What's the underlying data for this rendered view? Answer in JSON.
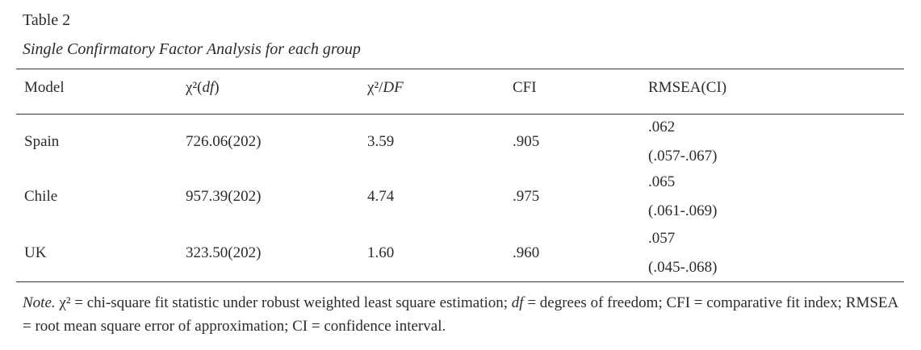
{
  "table": {
    "label": "Table 2",
    "title": "Single Confirmatory Factor Analysis for each group",
    "headers": {
      "model": "Model",
      "chi_df_symbol": "χ²(",
      "chi_df_df": "df",
      "chi_df_close": ")",
      "chi_ratio_symbol": "χ²/",
      "chi_ratio_df": "DF",
      "cfi": "CFI",
      "rmsea": "RMSEA(CI)"
    },
    "rows": [
      {
        "model": "Spain",
        "chi_df": "726.06(202)",
        "chi_ratio": "3.59",
        "cfi": ".905",
        "rmsea": ".062",
        "ci": "(.057-.067)"
      },
      {
        "model": "Chile",
        "chi_df": "957.39(202)",
        "chi_ratio": "4.74",
        "cfi": ".975",
        "rmsea": ".065",
        "ci": "(.061-.069)"
      },
      {
        "model": "UK",
        "chi_df": "323.50(202)",
        "chi_ratio": "1.60",
        "cfi": ".960",
        "rmsea": ".057",
        "ci": "(.045-.068)"
      }
    ],
    "note": {
      "lead": "Note.",
      "part1": " χ² = chi-square fit statistic under robust weighted least square estimation; ",
      "df": "df",
      "part2": " = degrees of freedom; CFI = comparative fit index; RMSEA = root mean square error of approximation; CI = confidence interval."
    }
  }
}
